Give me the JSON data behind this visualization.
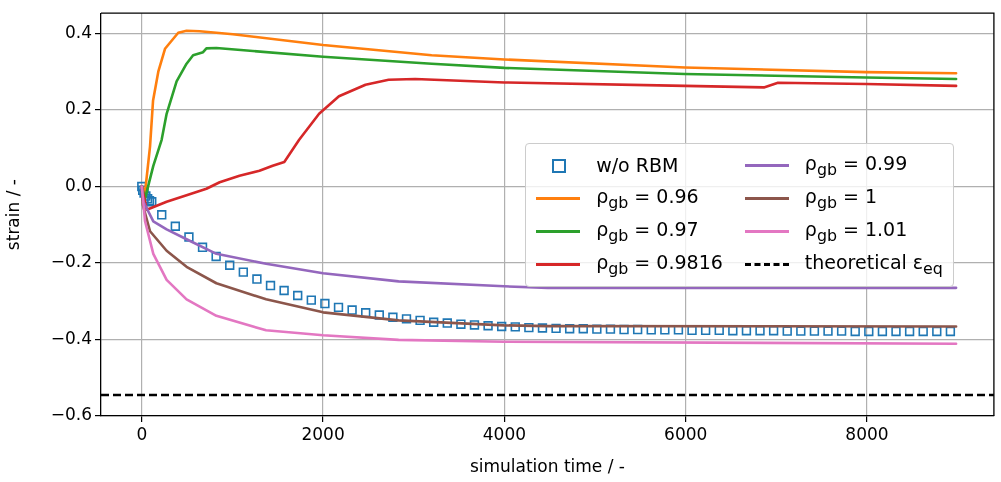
{
  "chart_data": {
    "type": "line",
    "xlabel": "simulation time / -",
    "ylabel": "strain / -",
    "xlim": [
      -450,
      9400
    ],
    "ylim": [
      -0.6,
      0.453
    ],
    "xticks": [
      0,
      2000,
      4000,
      6000,
      8000
    ],
    "yticks": [
      {
        "value": -0.6,
        "label": "−0.6"
      },
      {
        "value": -0.4,
        "label": "−0.4"
      },
      {
        "value": -0.2,
        "label": "−0.2"
      },
      {
        "value": 0,
        "label": "0.0"
      },
      {
        "value": 0.2,
        "label": "0.2"
      },
      {
        "value": 0.4,
        "label": "0.4"
      }
    ],
    "grid": true,
    "legend": "center right",
    "line_style": "solid",
    "series": [
      {
        "name": "w/o RBM",
        "type": "scatter",
        "marker": "square",
        "color": "#1f77b4",
        "x": [
          0,
          10,
          25,
          45,
          65,
          85,
          110,
          220,
          370,
          520,
          670,
          820,
          970,
          1120,
          1270,
          1420,
          1570,
          1720,
          1870,
          2020,
          2170,
          2320,
          2470,
          2620,
          2770,
          2920,
          3070,
          3220,
          3370,
          3520,
          3670,
          3820,
          3970,
          4120,
          4270,
          4420,
          4570,
          4720,
          4870,
          5020,
          5170,
          5320,
          5470,
          5620,
          5770,
          5920,
          6070,
          6220,
          6370,
          6520,
          6670,
          6820,
          6970,
          7120,
          7270,
          7420,
          7570,
          7720,
          7870,
          8020,
          8170,
          8320,
          8470,
          8620,
          8770,
          8920
        ],
        "values": [
          0,
          -0.01,
          -0.017,
          -0.025,
          -0.032,
          -0.037,
          -0.04,
          -0.074,
          -0.104,
          -0.132,
          -0.159,
          -0.183,
          -0.206,
          -0.224,
          -0.242,
          -0.259,
          -0.272,
          -0.285,
          -0.297,
          -0.306,
          -0.316,
          -0.323,
          -0.33,
          -0.336,
          -0.342,
          -0.346,
          -0.35,
          -0.355,
          -0.357,
          -0.36,
          -0.362,
          -0.364,
          -0.366,
          -0.367,
          -0.369,
          -0.37,
          -0.371,
          -0.372,
          -0.372,
          -0.373,
          -0.373,
          -0.374,
          -0.374,
          -0.375,
          -0.375,
          -0.375,
          -0.376,
          -0.376,
          -0.376,
          -0.377,
          -0.377,
          -0.377,
          -0.377,
          -0.378,
          -0.378,
          -0.378,
          -0.378,
          -0.378,
          -0.379,
          -0.379,
          -0.379,
          -0.379,
          -0.379,
          -0.379,
          -0.379,
          -0.379
        ]
      },
      {
        "name": "ρ$_{gb}$ = 0.96",
        "color": "#ff7f0e",
        "x": [
          0,
          36,
          91,
          124,
          182,
          256,
          329,
          402,
          494,
          639,
          1005,
          2000,
          3198,
          4000,
          5990,
          7987,
          8983
        ],
        "values": [
          0,
          -0.015,
          0.105,
          0.224,
          0.3,
          0.36,
          0.381,
          0.402,
          0.407,
          0.406,
          0.398,
          0.37,
          0.343,
          0.332,
          0.311,
          0.299,
          0.296
        ]
      },
      {
        "name": "ρ$_{gb}$ = 0.97",
        "color": "#2ca02c",
        "x": [
          0,
          36,
          127,
          219,
          274,
          384,
          494,
          566,
          676,
          713,
          823,
          2000,
          3198,
          4000,
          5990,
          7987,
          8983
        ],
        "values": [
          0,
          -0.031,
          0.054,
          0.122,
          0.19,
          0.275,
          0.321,
          0.343,
          0.351,
          0.361,
          0.362,
          0.339,
          0.321,
          0.31,
          0.294,
          0.285,
          0.281
        ]
      },
      {
        "name": "ρ$_{gb}$ = 0.9816",
        "color": "#d62728",
        "x": [
          0,
          55,
          274,
          494,
          713,
          859,
          1078,
          1298,
          1444,
          1572,
          1736,
          1956,
          2175,
          2468,
          2723,
          3016,
          4000,
          5990,
          6863,
          7018,
          7987,
          8983
        ],
        "values": [
          0,
          -0.061,
          -0.04,
          -0.023,
          -0.006,
          0.011,
          0.028,
          0.041,
          0.054,
          0.064,
          0.122,
          0.19,
          0.236,
          0.266,
          0.279,
          0.281,
          0.272,
          0.263,
          0.259,
          0.271,
          0.268,
          0.263
        ]
      },
      {
        "name": "ρ$_{gb}$ = 0.99",
        "color": "#9467bd",
        "x": [
          0,
          18,
          127,
          274,
          494,
          823,
          1371,
          2000,
          2833,
          3996,
          4478,
          5990,
          8983
        ],
        "values": [
          0,
          -0.04,
          -0.091,
          -0.112,
          -0.138,
          -0.176,
          -0.202,
          -0.227,
          -0.248,
          -0.261,
          -0.265,
          -0.265,
          -0.265
        ]
      },
      {
        "name": "ρ$_{gb}$ = 1",
        "color": "#8c564b",
        "x": [
          0,
          11,
          91,
          274,
          494,
          823,
          1371,
          2000,
          2833,
          3996,
          4478,
          8983
        ],
        "values": [
          0,
          -0.048,
          -0.117,
          -0.168,
          -0.21,
          -0.253,
          -0.295,
          -0.329,
          -0.35,
          -0.363,
          -0.365,
          -0.366
        ]
      },
      {
        "name": "ρ$_{gb}$ = 1.01",
        "color": "#e377c2",
        "x": [
          0,
          36,
          127,
          274,
          494,
          823,
          1371,
          2000,
          2833,
          3996,
          8983
        ],
        "values": [
          0,
          -0.091,
          -0.176,
          -0.244,
          -0.295,
          -0.338,
          -0.376,
          -0.389,
          -0.401,
          -0.406,
          -0.411
        ]
      }
    ],
    "ref_lines": [
      {
        "axis": "y",
        "value": -0.545,
        "label": "theoretical ε$_{eq}$",
        "color": "#000000",
        "line_style": "dashed"
      }
    ]
  }
}
